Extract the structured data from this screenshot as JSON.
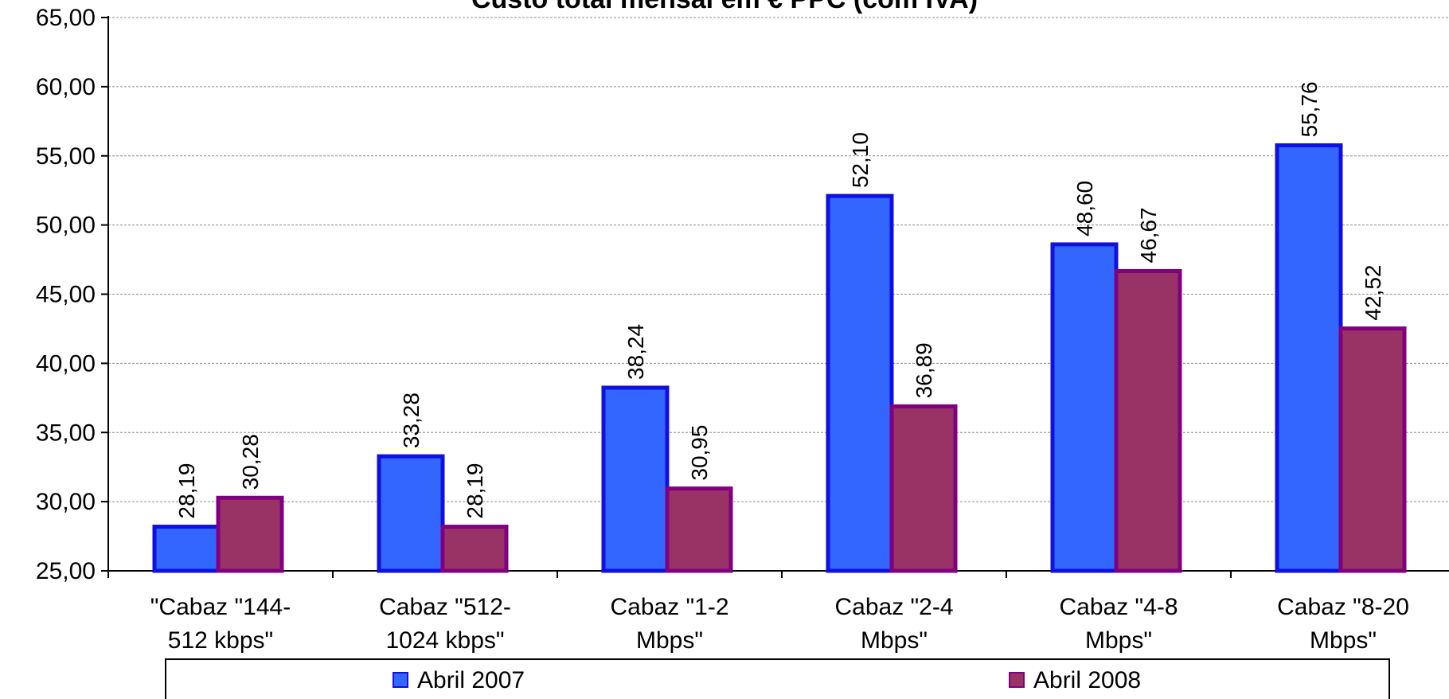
{
  "chart_data": {
    "type": "bar",
    "title": "Custo total mensal em € PPC (com IVA)",
    "xlabel": "",
    "ylabel": "",
    "ylim": [
      25,
      65
    ],
    "yticks": [
      "25,00",
      "30,00",
      "35,00",
      "40,00",
      "45,00",
      "50,00",
      "55,00",
      "60,00",
      "65,00"
    ],
    "grid": true,
    "legend_position": "bottom",
    "categories": [
      [
        "\"Cabaz \"144-",
        "512 kbps\""
      ],
      [
        "Cabaz \"512-",
        "1024 kbps\""
      ],
      [
        "Cabaz \"1-2",
        "Mbps\""
      ],
      [
        "Cabaz \"2-4",
        "Mbps\""
      ],
      [
        "Cabaz \"4-8",
        "Mbps\""
      ],
      [
        "Cabaz \"8-20",
        "Mbps\""
      ]
    ],
    "series": [
      {
        "name": "Abril 2007",
        "color": "#3366FF",
        "border": "#1010E0",
        "values": [
          28.19,
          33.28,
          38.24,
          52.1,
          48.6,
          55.76
        ],
        "labels": [
          "28,19",
          "33,28",
          "38,24",
          "52,10",
          "48,60",
          "55,76"
        ]
      },
      {
        "name": "Abril 2008",
        "color": "#993366",
        "border": "#800080",
        "values": [
          30.28,
          28.19,
          30.95,
          36.89,
          46.67,
          42.52
        ],
        "labels": [
          "30,28",
          "28,19",
          "30,95",
          "36,89",
          "46,67",
          "42,52"
        ]
      }
    ]
  }
}
